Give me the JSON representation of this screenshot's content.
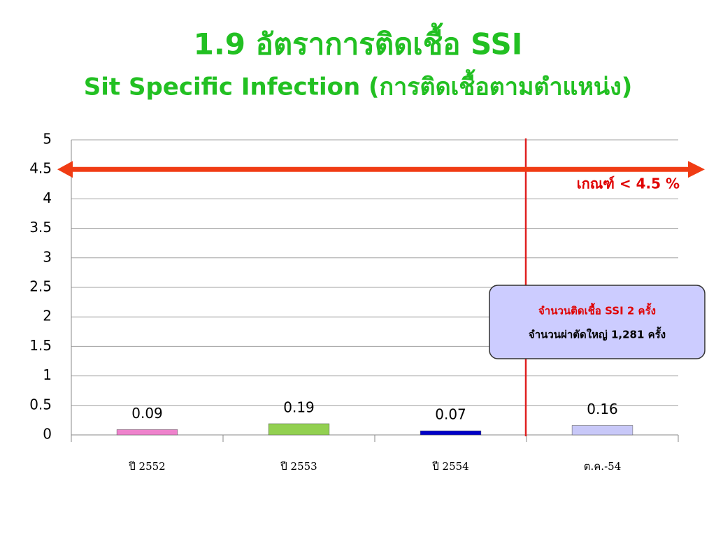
{
  "chart_data": {
    "type": "bar",
    "title": "1.9 อัตราการติดเชื้อ SSI",
    "subtitle": "Sit Specific Infection (การติดเชื้อตามตำแหน่ง)",
    "categories": [
      "ปี 2552",
      "ปี 2553",
      "ปี 2554",
      "ต.ค.-54"
    ],
    "values": [
      0.09,
      0.19,
      0.07,
      0.16
    ],
    "colors": [
      "#ee82cc",
      "#92d050",
      "#0000c8",
      "#c8c8f8"
    ],
    "ylim": [
      0,
      5
    ],
    "yticks": [
      0,
      0.5,
      1,
      1.5,
      2,
      2.5,
      3,
      3.5,
      4,
      4.5,
      5
    ],
    "grid": true,
    "threshold": {
      "value": 4.5,
      "label": "เกณฑ์ < 4.5 %",
      "color": "#f03c14"
    },
    "annotations": [
      "จำนวนติดเชื้อ SSI 2 ครั้ง",
      "จำนวนผ่าตัดใหญ่ 1,281 ครั้ง"
    ]
  }
}
